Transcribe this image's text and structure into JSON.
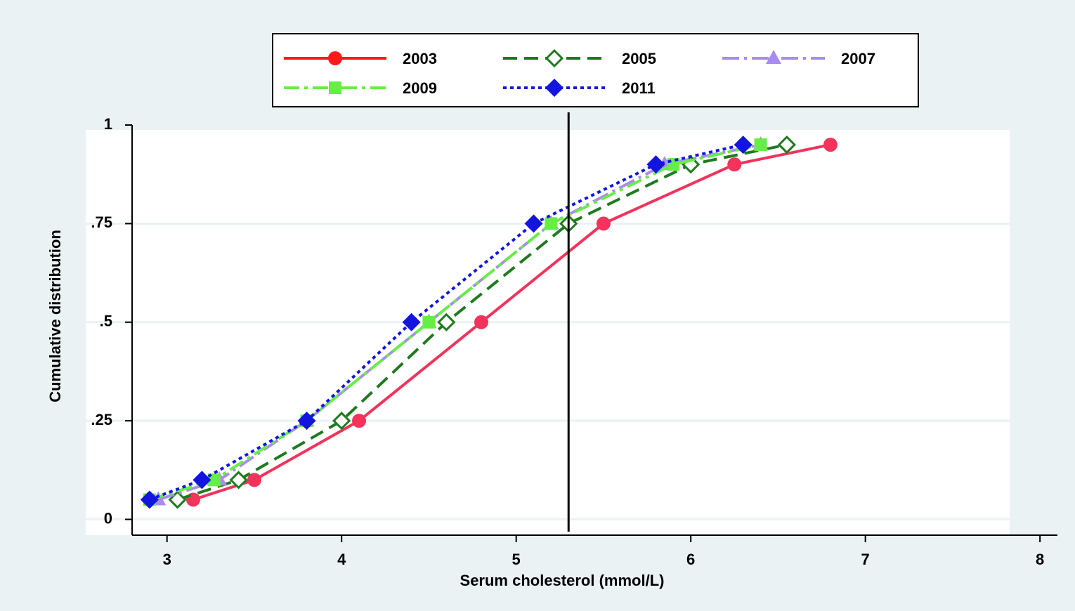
{
  "chart_data": {
    "type": "line",
    "xlabel": "Serum cholesterol (mmol/L)",
    "ylabel": "Cumulative distribution",
    "xlim": [
      2.8,
      8.1
    ],
    "xticks": [
      3,
      4,
      5,
      6,
      7,
      8
    ],
    "ylim": [
      -0.04,
      1
    ],
    "yticks": [
      0,
      {
        "value": 0.25,
        "label": ".25"
      },
      {
        "value": 0.5,
        "label": ".5"
      },
      {
        "value": 0.75,
        "label": ".75"
      },
      1
    ],
    "grid": true,
    "xline": 5.3,
    "series": [
      {
        "name": "2003",
        "color": "#f2335c",
        "legend_color": "#ff1a1a",
        "marker": "circle",
        "dash": "solid",
        "x": [
          3.15,
          3.5,
          4.1,
          4.8,
          5.5,
          6.25,
          6.8
        ],
        "values": [
          0.05,
          0.1,
          0.25,
          0.5,
          0.75,
          0.9,
          0.95
        ]
      },
      {
        "name": "2005",
        "color": "#1f7a1f",
        "legend_color": "#1f7a1f",
        "marker": "hollow-diamond",
        "dash": "dash",
        "x": [
          3.06,
          3.41,
          4.0,
          4.6,
          5.3,
          6.0,
          6.55
        ],
        "values": [
          0.05,
          0.1,
          0.25,
          0.5,
          0.75,
          0.9,
          0.95
        ]
      },
      {
        "name": "2007",
        "color": "#a98cf0",
        "legend_color": "#a98cf0",
        "marker": "triangle",
        "dash": "longdashdot",
        "x": [
          2.95,
          3.3,
          3.8,
          4.5,
          5.2,
          5.85,
          6.4
        ],
        "values": [
          0.05,
          0.1,
          0.25,
          0.5,
          0.75,
          0.9,
          0.95
        ]
      },
      {
        "name": "2009",
        "color": "#66ee44",
        "legend_color": "#66ee44",
        "marker": "square",
        "dash": "dashdot",
        "x": [
          2.9,
          3.27,
          3.8,
          4.5,
          5.2,
          5.9,
          6.4
        ],
        "values": [
          0.05,
          0.1,
          0.25,
          0.5,
          0.75,
          0.9,
          0.95
        ]
      },
      {
        "name": "2011",
        "color": "#1414e0",
        "legend_color": "#1414e0",
        "marker": "diamond",
        "dash": "dot",
        "x": [
          2.9,
          3.2,
          3.8,
          4.4,
          5.1,
          5.8,
          6.3
        ],
        "values": [
          0.05,
          0.1,
          0.25,
          0.5,
          0.75,
          0.9,
          0.95
        ]
      }
    ]
  }
}
